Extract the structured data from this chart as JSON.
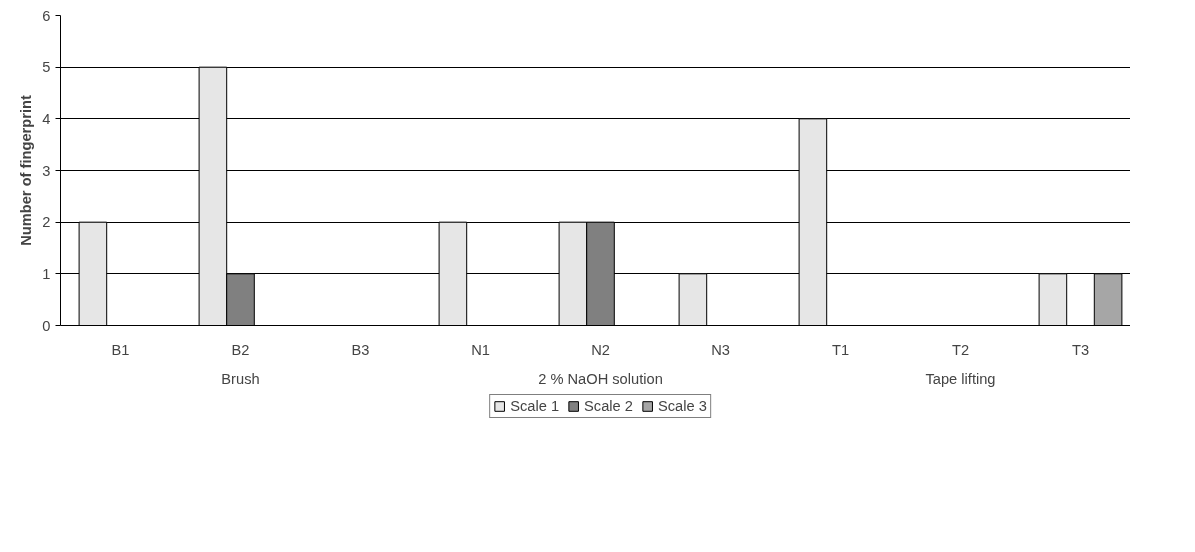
{
  "chart_data": {
    "type": "bar",
    "ylabel": "Number of fingerprint",
    "categories": [
      "B1",
      "B2",
      "B3",
      "N1",
      "N2",
      "N3",
      "T1",
      "T2",
      "T3"
    ],
    "series": [
      {
        "name": "Scale 1",
        "color": "#e6e6e6",
        "values": [
          2,
          5,
          0,
          2,
          2,
          1,
          4,
          0,
          1
        ]
      },
      {
        "name": "Scale 2",
        "color": "#808080",
        "values": [
          0,
          1,
          0,
          0,
          2,
          0,
          0,
          0,
          0
        ]
      },
      {
        "name": "Scale 3",
        "color": "#a6a6a6",
        "values": [
          0,
          0,
          0,
          0,
          0,
          0,
          0,
          0,
          1
        ]
      }
    ],
    "annotations": [
      "Brush",
      "2 % NaOH solution",
      "Tape lifting"
    ],
    "ylim": [
      0,
      6
    ],
    "yticks": [
      0,
      1,
      2,
      3,
      4,
      5,
      6
    ],
    "grid": "y",
    "legend": "bottom"
  }
}
